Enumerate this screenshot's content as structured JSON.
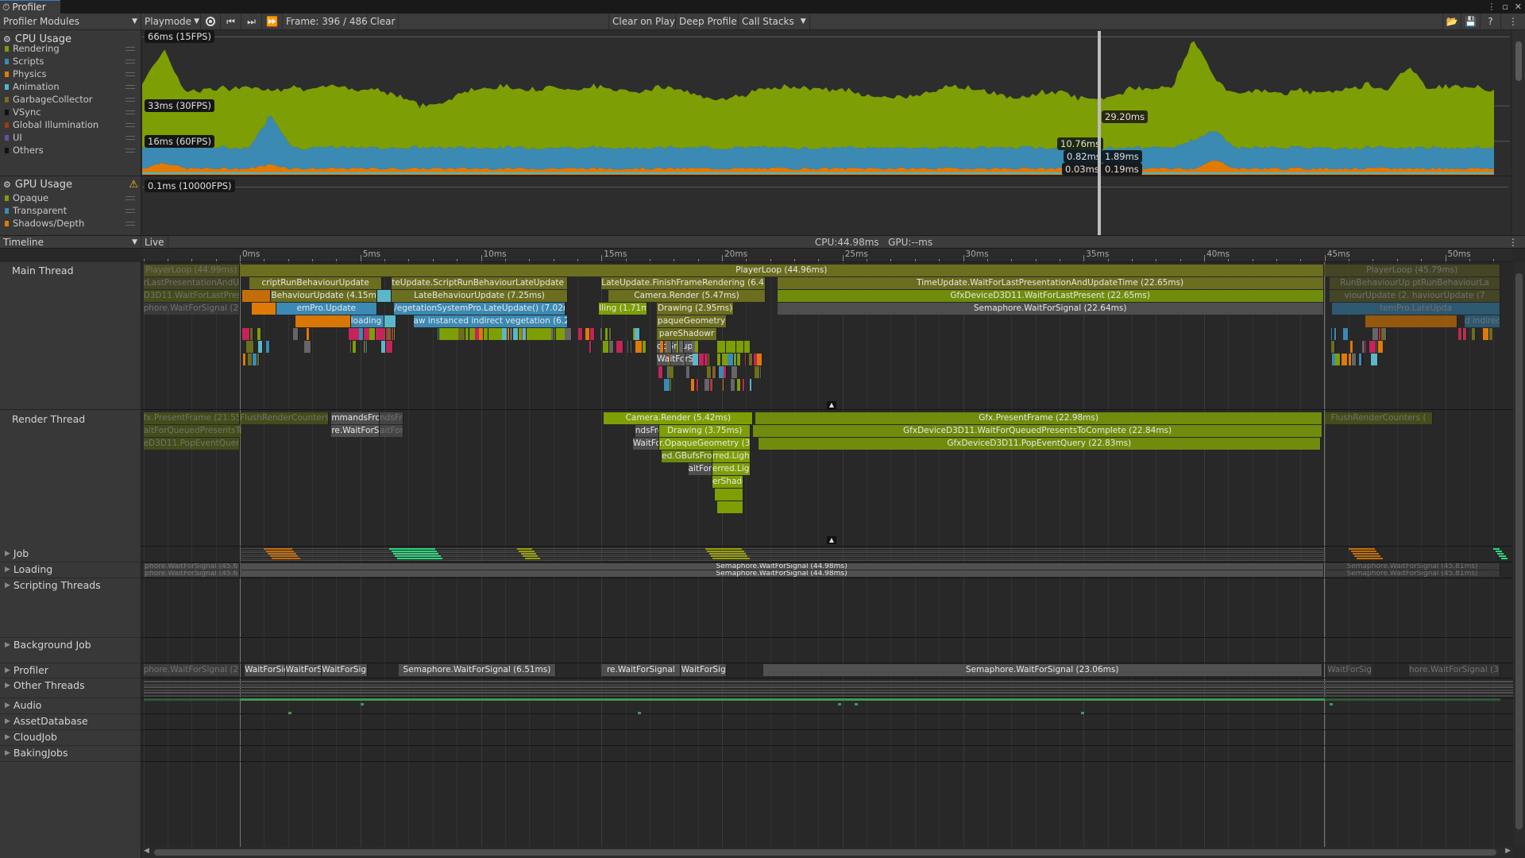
{
  "window": {
    "tab_title": "Profiler"
  },
  "toolbar": {
    "modules_label": "Profiler Modules",
    "playmode_label": "Playmode",
    "frame_label": "Frame: 396 / 486",
    "clear_label": "Clear",
    "clear_on_play_label": "Clear on Play",
    "deep_profile_label": "Deep Profile",
    "call_stacks_label": "Call Stacks"
  },
  "cpu_module": {
    "title": "CPU Usage",
    "legend": [
      {
        "label": "Rendering",
        "color": "#7e9e06"
      },
      {
        "label": "Scripts",
        "color": "#3b8ab4"
      },
      {
        "label": "Physics",
        "color": "#e27a06"
      },
      {
        "label": "Animation",
        "color": "#4ab8c8"
      },
      {
        "label": "GarbageCollector",
        "color": "#7b6b1f"
      },
      {
        "label": "VSync",
        "color": "#101010"
      },
      {
        "label": "Global Illumination",
        "color": "#a0381a"
      },
      {
        "label": "UI",
        "color": "#6a4ea3"
      },
      {
        "label": "Others",
        "color": "#101010"
      }
    ]
  },
  "gpu_module": {
    "title": "GPU Usage",
    "warning": "warning-icon",
    "legend": [
      {
        "label": "Opaque",
        "color": "#7e9e06"
      },
      {
        "label": "Transparent",
        "color": "#3b8ab4"
      },
      {
        "label": "Shadows/Depth",
        "color": "#e27a06"
      }
    ],
    "line_label": "0.1ms (10000FPS)"
  },
  "cpu_chart": {
    "type": "area",
    "stacked": true,
    "ylim_ms": [
      0,
      70
    ],
    "lines": [
      {
        "ms": 66,
        "label": "66ms (15FPS)"
      },
      {
        "ms": 33,
        "label": "33ms (30FPS)"
      },
      {
        "ms": 16,
        "label": "16ms (60FPS)"
      }
    ],
    "series": {
      "physics": [
        3,
        6,
        3,
        3,
        3,
        3,
        5,
        3,
        3,
        3,
        3,
        3,
        3,
        3,
        3,
        3,
        3,
        3,
        3,
        3,
        3,
        3,
        3,
        3,
        3,
        3,
        3,
        3,
        3,
        3,
        3,
        3,
        3,
        3,
        3,
        3,
        3,
        3,
        3,
        3,
        3,
        3,
        3,
        3,
        3,
        3,
        3,
        3,
        3,
        3,
        7,
        3,
        3,
        3,
        3,
        3,
        3,
        3,
        3,
        3,
        3,
        3,
        3,
        3
      ],
      "scripts": [
        10,
        10,
        10,
        10,
        10,
        10,
        24,
        10,
        10,
        10,
        10,
        10,
        10,
        10,
        10,
        10,
        10,
        10,
        10,
        10,
        10,
        10,
        10,
        10,
        10,
        10,
        10,
        10,
        10,
        10,
        10,
        10,
        10,
        10,
        10,
        10,
        10,
        10,
        10,
        10,
        10,
        10,
        10,
        10,
        10,
        10,
        10,
        10,
        10,
        14,
        14,
        10,
        10,
        10,
        10,
        10,
        10,
        10,
        10,
        10,
        10,
        10,
        10,
        10
      ],
      "rendering": [
        31,
        44,
        27,
        28,
        28,
        29,
        12,
        29,
        28,
        29,
        28,
        28,
        25,
        20,
        21,
        27,
        29,
        29,
        28,
        29,
        28,
        29,
        28,
        27,
        29,
        28,
        24,
        24,
        25,
        28,
        29,
        29,
        28,
        27,
        24,
        24,
        25,
        28,
        29,
        28,
        25,
        23,
        27,
        26,
        23,
        24,
        28,
        28,
        29,
        49,
        24,
        26,
        27,
        26,
        27,
        27,
        28,
        30,
        28,
        39,
        28,
        30,
        29,
        27
      ]
    },
    "selected": {
      "total": "29.20ms",
      "rendering": "10.76ms",
      "scripts_left": "0.82ms",
      "scripts_right": "1.89ms",
      "physics_left": "0.03ms",
      "physics_right": "0.19ms"
    }
  },
  "timeline": {
    "view_label": "Timeline",
    "live_label": "Live",
    "summary": "CPU:44.98ms   GPU:--ms",
    "ruler": [
      "0ms",
      "5ms",
      "10ms",
      "15ms",
      "20ms",
      "25ms",
      "30ms",
      "35ms",
      "40ms",
      "45ms",
      "50ms"
    ],
    "threads": {
      "main": "Main Thread",
      "render": "Render Thread",
      "job": "Job",
      "loading": "Loading",
      "scripting": "Scripting Threads",
      "background": "Background Job",
      "profiler": "Profiler",
      "other": "Other Threads",
      "audio": "Audio",
      "asset": "AssetDatabase",
      "cloud": "CloudJob",
      "baking": "BakingJobs"
    },
    "main_blocks": [
      {
        "row": 0,
        "s": -4,
        "e": 0,
        "t": "PlayerLoop (44.99ms)",
        "c": "#5c5f1f",
        "dim": true
      },
      {
        "row": 0,
        "s": 0,
        "e": 44.96,
        "t": "PlayerLoop (44.96ms)",
        "c": "#6b6d1f"
      },
      {
        "row": 0,
        "s": 44.98,
        "e": 52.3,
        "t": "PlayerLoop (45.79ms)",
        "c": "#4d4f24",
        "dim": true
      },
      {
        "row": 1,
        "s": -4,
        "e": 0,
        "t": "rLastPresentationAndUpd",
        "c": "#4d4f24",
        "dim": true
      },
      {
        "row": 1,
        "s": 0.4,
        "e": 5.9,
        "t": "criptRunBehaviourUpdate",
        "c": "#6b6d1f"
      },
      {
        "row": 1,
        "s": 6.3,
        "e": 13.6,
        "t": "teUpdate.ScriptRunBehaviourLateUpdate (7.2",
        "c": "#6b6d1f"
      },
      {
        "row": 1,
        "s": 15.0,
        "e": 21.8,
        "t": "LateUpdate.FinishFrameRendering (6.45",
        "c": "#6b6d1f"
      },
      {
        "row": 1,
        "s": 22.3,
        "e": 44.96,
        "t": "TimeUpdate.WaitForLastPresentationAndUpdateTime (22.65ms)",
        "c": "#6b6d1f"
      },
      {
        "row": 1,
        "s": 45.2,
        "e": 52.3,
        "t": "RunBehaviourUp   ptRunBehaviourLa",
        "c": "#4d4f24",
        "dim": true
      },
      {
        "row": 2,
        "s": -4,
        "e": 0,
        "t": "D3D11.WaitForLastPresent",
        "c": "#4d5a14",
        "dim": true
      },
      {
        "row": 2,
        "s": 0.1,
        "e": 1.3,
        "t": "",
        "c": "#c36d0a"
      },
      {
        "row": 2,
        "s": 1.3,
        "e": 5.7,
        "t": "BehaviourUpdate (4.15ms)",
        "c": "#6b6d1f"
      },
      {
        "row": 2,
        "s": 5.7,
        "e": 6.3,
        "t": "",
        "c": "#5ab8c8"
      },
      {
        "row": 2,
        "s": 6.3,
        "e": 13.6,
        "t": "LateBehaviourUpdate (7.25ms)",
        "c": "#6b6d1f"
      },
      {
        "row": 2,
        "s": 15.3,
        "e": 21.8,
        "t": "Camera.Render (5.47ms)",
        "c": "#6b6d1f"
      },
      {
        "row": 2,
        "s": 22.3,
        "e": 44.96,
        "t": "GfxDeviceD3D11.WaitForLastPresent (22.65ms)",
        "c": "#6f8c0c"
      },
      {
        "row": 2,
        "s": 45.2,
        "e": 52.3,
        "t": "viourUpdate (2.   haviourUpdate (7",
        "c": "#4d4f24",
        "dim": true
      },
      {
        "row": 3,
        "s": -4,
        "e": 0,
        "t": "phore.WaitForSignal (20.6",
        "c": "#3f3f3f",
        "dim": true
      },
      {
        "row": 3,
        "s": 0.5,
        "e": 1.5,
        "t": "",
        "c": "#e07a06"
      },
      {
        "row": 3,
        "s": 1.5,
        "e": 5.7,
        "t": "emPro.Update",
        "c": "#3b8ab4"
      },
      {
        "row": 3,
        "s": 6.4,
        "e": 13.5,
        "t": "/egetationSystemPro.LateUpdate() (7.02ms",
        "c": "#3b8ab4"
      },
      {
        "row": 3,
        "s": 14.9,
        "e": 16.9,
        "t": "lling (1.71m",
        "c": "#7e9e06"
      },
      {
        "row": 3,
        "s": 17.3,
        "e": 20.5,
        "t": "Drawing (2.95ms)",
        "c": "#6b6d1f"
      },
      {
        "row": 3,
        "s": 22.3,
        "e": 44.96,
        "t": "Semaphore.WaitForSignal (22.64ms)",
        "c": "#4e4e4e"
      },
      {
        "row": 3,
        "s": 45.3,
        "e": 52.3,
        "t": "temPro.LateUpda",
        "c": "#2f6888",
        "dim": true
      },
      {
        "row": 4,
        "s": 2.3,
        "e": 4.6,
        "t": "",
        "c": "#d97706"
      },
      {
        "row": 4,
        "s": 4.6,
        "e": 6.0,
        "t": "loading jo",
        "c": "#3b8ab4"
      },
      {
        "row": 4,
        "s": 6.0,
        "e": 6.5,
        "t": "",
        "c": "#5ab8c8"
      },
      {
        "row": 4,
        "s": 7.2,
        "e": 13.6,
        "t": "aw instanced indirect vegetation (6.21m",
        "c": "#3b8ab4"
      },
      {
        "row": 4,
        "s": 17.3,
        "e": 20.2,
        "t": "paqueGeometry",
        "c": "#6b6d1f"
      },
      {
        "row": 4,
        "s": 46.7,
        "e": 50.5,
        "t": "",
        "c": "#b96806",
        "dim": true
      },
      {
        "row": 4,
        "s": 50.8,
        "e": 52.3,
        "t": "d indirect veget",
        "c": "#2f6888",
        "dim": true
      },
      {
        "row": 5,
        "s": 4.5,
        "e": 6.3,
        "t": "",
        "c": "#c4245a"
      },
      {
        "row": 5,
        "s": 8.2,
        "e": 13.6,
        "t": "",
        "c": "#7e9e06"
      },
      {
        "row": 5,
        "s": 17.3,
        "e": 19.8,
        "t": "pareShadowr",
        "c": "#6b6d1f"
      },
      {
        "row": 6,
        "s": 17.3,
        "e": 18.9,
        "t": "obGroupID",
        "c": "#555"
      },
      {
        "row": 6,
        "s": 19.8,
        "e": 21.2,
        "t": "",
        "c": "#7e9e06"
      },
      {
        "row": 7,
        "s": 17.3,
        "e": 18.9,
        "t": "WaitForSi",
        "c": "#555"
      },
      {
        "row": 7,
        "s": 20.0,
        "e": 20.8,
        "t": "",
        "c": "#7e9e06"
      }
    ],
    "render_blocks": [
      {
        "row": 0,
        "s": -4,
        "e": 0,
        "t": "fx.PresentFrame (21.55m",
        "c": "#4d5a14",
        "dim": true
      },
      {
        "row": 0,
        "s": 0,
        "e": 3.7,
        "t": "FlushRenderCounters (",
        "c": "#4d5a14",
        "dim": true
      },
      {
        "row": 0,
        "s": 3.8,
        "e": 5.8,
        "t": "mmandsFromMa",
        "c": "#4e4e4e"
      },
      {
        "row": 0,
        "s": 5.8,
        "e": 6.8,
        "t": "ndsFro",
        "c": "#4e4e4e",
        "dim": true
      },
      {
        "row": 0,
        "s": 15.1,
        "e": 21.3,
        "t": "Camera.Render (5.42ms)",
        "c": "#7e9e06"
      },
      {
        "row": 0,
        "s": 21.4,
        "e": 44.9,
        "t": "Gfx.PresentFrame (22.98ms)",
        "c": "#6f8c0c"
      },
      {
        "row": 0,
        "s": 45.0,
        "e": 49.5,
        "t": "FlushRenderCounters (",
        "c": "#4d5a14",
        "dim": true
      },
      {
        "row": 1,
        "s": -4,
        "e": 0.1,
        "t": "aitForQueuedPresentsToC",
        "c": "#4d5a14",
        "dim": true
      },
      {
        "row": 1,
        "s": 3.8,
        "e": 5.8,
        "t": "re.WaitForSignal",
        "c": "#4e4e4e"
      },
      {
        "row": 1,
        "s": 5.8,
        "e": 6.8,
        "t": "aitForS",
        "c": "#4e4e4e",
        "dim": true
      },
      {
        "row": 1,
        "s": 16.4,
        "e": 17.4,
        "t": "ndsFron",
        "c": "#4e4e4e"
      },
      {
        "row": 1,
        "s": 17.4,
        "e": 21.2,
        "t": "Drawing (3.75ms)",
        "c": "#7e9e06"
      },
      {
        "row": 1,
        "s": 21.3,
        "e": 44.9,
        "t": "GfxDeviceD3D11.WaitForQueuedPresentsToComplete (22.84ms)",
        "c": "#6f8c0c"
      },
      {
        "row": 2,
        "s": -4,
        "e": 0,
        "t": "eD3D11.PopEventQuery (",
        "c": "#4d5a14",
        "dim": true
      },
      {
        "row": 2,
        "s": 16.3,
        "e": 17.4,
        "t": "WaitForSi",
        "c": "#4e4e4e"
      },
      {
        "row": 2,
        "s": 17.4,
        "e": 21.2,
        "t": "r.OpaqueGeometry (3.6",
        "c": "#7e9e06"
      },
      {
        "row": 2,
        "s": 21.5,
        "e": 44.85,
        "t": "GfxDeviceD3D11.PopEventQuery (22.83ms)",
        "c": "#6f8c0c"
      },
      {
        "row": 3,
        "s": 17.5,
        "e": 19.6,
        "t": "ed.GBufsFro",
        "c": "#6b8a0a"
      },
      {
        "row": 3,
        "s": 19.6,
        "e": 21.2,
        "t": "rred.Light",
        "c": "#7e9e06"
      },
      {
        "row": 4,
        "s": 18.6,
        "e": 19.6,
        "t": "aitForS",
        "c": "#4e4e4e"
      },
      {
        "row": 4,
        "s": 19.6,
        "e": 21.2,
        "t": "erred.Ligh",
        "c": "#7e9e06"
      },
      {
        "row": 5,
        "s": 19.6,
        "e": 20.9,
        "t": "erShadov",
        "c": "#7e9e06"
      },
      {
        "row": 6,
        "s": 19.7,
        "e": 20.9,
        "t": "",
        "c": "#7e9e06"
      },
      {
        "row": 7,
        "s": 19.8,
        "e": 20.9,
        "t": "",
        "c": "#7e9e06"
      }
    ],
    "loading_blocks": [
      {
        "row": 0,
        "s": -4,
        "e": 0,
        "t": "phore.WaitForSignal (45.6",
        "c": "#444",
        "dim": true
      },
      {
        "row": 0,
        "s": 0,
        "e": 44.98,
        "t": "Semaphore.WaitForSignal (44.98ms)",
        "c": "#505050"
      },
      {
        "row": 0,
        "s": 45,
        "e": 52.3,
        "t": "Semaphore.WaitForSignal (45.81ms)",
        "c": "#3a3a3a",
        "dim": true
      },
      {
        "row": 1,
        "s": -4,
        "e": 0,
        "t": "phore.WaitForSignal (45.6",
        "c": "#444",
        "dim": true
      },
      {
        "row": 1,
        "s": 0,
        "e": 44.98,
        "t": "Semaphore.WaitForSignal (44.98ms)",
        "c": "#505050"
      },
      {
        "row": 1,
        "s": 45,
        "e": 52.3,
        "t": "Semaphore.WaitForSignal (45.81ms)",
        "c": "#3a3a3a",
        "dim": true
      }
    ],
    "profiler_blocks": [
      {
        "row": 0,
        "s": -4,
        "e": 0,
        "t": "phore.WaitForSignal (21.6",
        "c": "#444",
        "dim": true
      },
      {
        "row": 0,
        "s": 0.2,
        "e": 1.9,
        "t": "WaitForSig",
        "c": "#4e4e4e"
      },
      {
        "row": 0,
        "s": 1.9,
        "e": 3.4,
        "t": "WaitForSig",
        "c": "#4e4e4e"
      },
      {
        "row": 0,
        "s": 3.4,
        "e": 5.3,
        "t": "WaitForSign",
        "c": "#4e4e4e"
      },
      {
        "row": 0,
        "s": 6.6,
        "e": 13.1,
        "t": "Semaphore.WaitForSignal (6.51ms)",
        "c": "#4e4e4e"
      },
      {
        "row": 0,
        "s": 15.0,
        "e": 18.3,
        "t": "re.WaitForSignal",
        "c": "#4e4e4e"
      },
      {
        "row": 0,
        "s": 18.3,
        "e": 20.2,
        "t": "WaitForSig",
        "c": "#4e4e4e"
      },
      {
        "row": 0,
        "s": 21.7,
        "e": 44.9,
        "t": "Semaphore.WaitForSignal (23.06ms)",
        "c": "#505050"
      },
      {
        "row": 0,
        "s": 45.1,
        "e": 47.0,
        "t": "WaitForSig",
        "c": "#3a3a3a",
        "dim": true
      },
      {
        "row": 0,
        "s": 48.5,
        "e": 52.3,
        "t": "hore.WaitForSignal (3.8",
        "c": "#3a3a3a",
        "dim": true
      }
    ]
  }
}
